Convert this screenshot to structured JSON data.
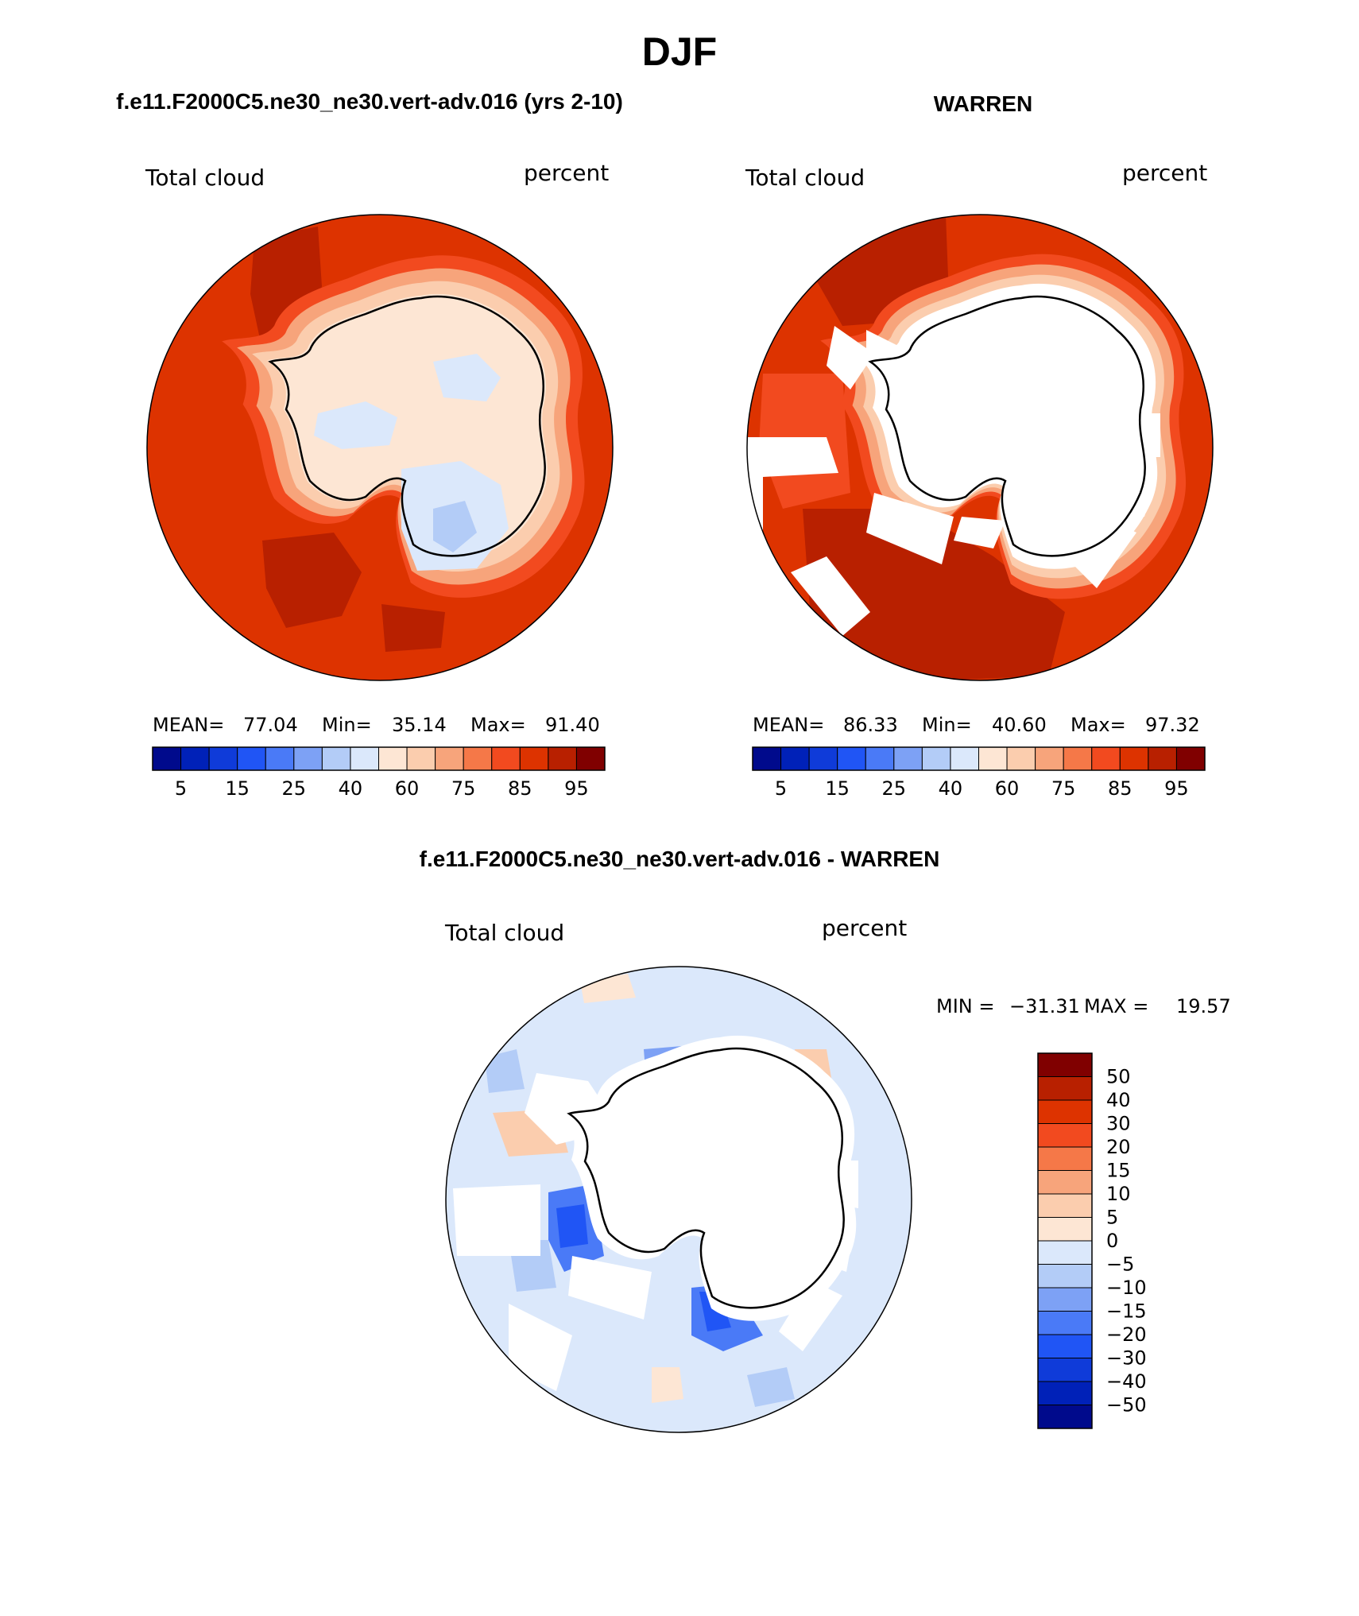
{
  "figure": {
    "title": "DJF",
    "top_left_heading": "f.e11.F2000C5.ne30_ne30.vert-adv.016 (yrs 2-10)",
    "top_right_heading": "WARREN",
    "bottom_heading": "f.e11.F2000C5.ne30_ne30.vert-adv.016 - WARREN"
  },
  "panels": [
    {
      "variable": "Total cloud",
      "units": "percent",
      "stats": {
        "mean_label": "MEAN=",
        "mean": "77.04",
        "min_label": "Min=",
        "min": "35.14",
        "max_label": "Max=",
        "max": "91.40"
      }
    },
    {
      "variable": "Total cloud",
      "units": "percent",
      "stats": {
        "mean_label": "MEAN=",
        "mean": "86.33",
        "min_label": "Min=",
        "min": "40.60",
        "max_label": "Max=",
        "max": "97.32"
      }
    },
    {
      "variable": "Total cloud",
      "units": "percent",
      "stats": {
        "min_label": "MIN =",
        "min": "−31.31",
        "max_label": "MAX =",
        "max": "19.57"
      }
    }
  ],
  "abs_colorbar": {
    "colors": [
      "#000a8c",
      "#0021b8",
      "#0f3bd9",
      "#2055f5",
      "#4a7af7",
      "#7da1f5",
      "#b3ccf7",
      "#dbe8fb",
      "#fde6d4",
      "#fbcdae",
      "#f7a47b",
      "#f57848",
      "#f24a1f",
      "#dd3300",
      "#b82000",
      "#800000"
    ],
    "tick_labels": [
      "5",
      "15",
      "25",
      "40",
      "60",
      "75",
      "85",
      "95"
    ]
  },
  "diff_colorbar": {
    "colors_top_to_bottom": [
      "#800000",
      "#b82000",
      "#dd3300",
      "#f24a1f",
      "#f57848",
      "#f7a47b",
      "#fbcdae",
      "#fde6d4",
      "#dbe8fb",
      "#b3ccf7",
      "#7da1f5",
      "#4a7af7",
      "#2055f5",
      "#0f3bd9",
      "#0021b8",
      "#000a8c"
    ],
    "tick_labels": [
      "50",
      "40",
      "30",
      "20",
      "15",
      "10",
      "5",
      "0",
      "−5",
      "−10",
      "−15",
      "−20",
      "−30",
      "−40",
      "−50"
    ]
  },
  "map_colors": {
    "ocean_cloud_high": "#dd3300",
    "ocean_cloud_very_high": "#b82000",
    "coast_cloud_mid": "#f24a1f",
    "ice_low": "#fde6d4",
    "ice_lower": "#dbe8fb",
    "diff_background": "#dbe8fb",
    "missing": "#ffffff",
    "coastline": "#000000"
  }
}
